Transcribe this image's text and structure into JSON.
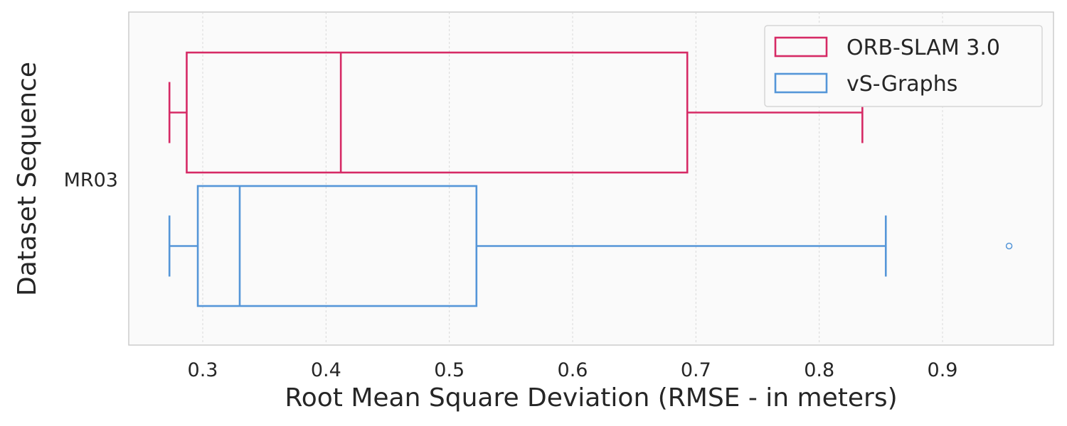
{
  "chart_data": {
    "type": "boxplot",
    "orientation": "horizontal",
    "title": "",
    "xlabel": "Root Mean Square Deviation (RMSE - in meters)",
    "ylabel": "Dataset Sequence",
    "categories": [
      "MR03"
    ],
    "xlim": [
      0.24,
      0.99
    ],
    "xticks": [
      "0.3",
      "0.4",
      "0.5",
      "0.6",
      "0.7",
      "0.8",
      "0.9"
    ],
    "grid": "x-dashed",
    "legend_position": "top-right",
    "series": [
      {
        "name": "ORB-SLAM 3.0",
        "color": "#d62a65",
        "category": "MR03",
        "whisker_low": 0.273,
        "q1": 0.287,
        "median": 0.412,
        "q3": 0.693,
        "whisker_high": 0.835,
        "outliers": []
      },
      {
        "name": "vS-Graphs",
        "color": "#5596d8",
        "category": "MR03",
        "whisker_low": 0.273,
        "q1": 0.296,
        "median": 0.33,
        "q3": 0.522,
        "whisker_high": 0.854,
        "outliers": [
          0.954
        ]
      }
    ]
  }
}
